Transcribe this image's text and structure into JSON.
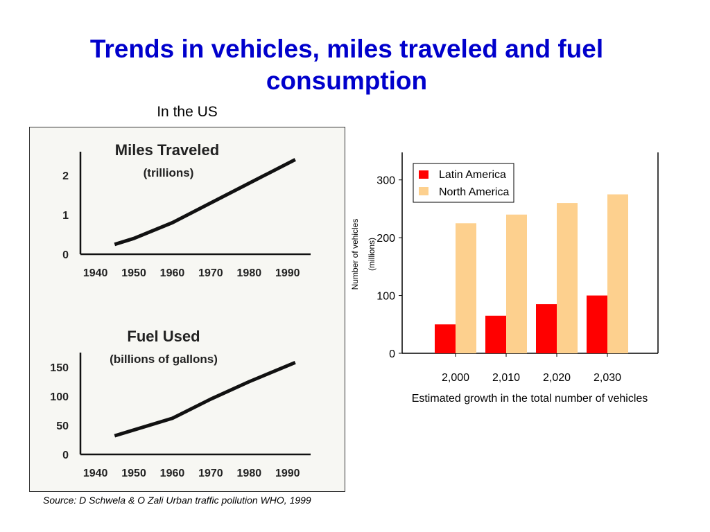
{
  "slide": {
    "title": "Trends in vehicles, miles traveled and fuel consumption",
    "subtitle": "In the US",
    "source": "Source: D Schwela & O Zali Urban traffic pollution WHO, 1999"
  },
  "colors": {
    "title": "#0000cc",
    "latin_america": "#ff0000",
    "north_america": "#fdd08e",
    "panel_bg": "#f7f7f3"
  },
  "chart_data": [
    {
      "type": "line",
      "title": "Miles Traveled",
      "subtitle": "(trillions)",
      "x": [
        1945,
        1950,
        1960,
        1970,
        1980,
        1992
      ],
      "x_ticks": [
        "1940",
        "1950",
        "1960",
        "1970",
        "1980",
        "1990"
      ],
      "x_tick_values": [
        1940,
        1950,
        1960,
        1970,
        1980,
        1990
      ],
      "y": [
        0.25,
        0.4,
        0.8,
        1.3,
        1.8,
        2.4
      ],
      "y_ticks": [
        "0",
        "1",
        "2"
      ],
      "y_tick_values": [
        0,
        1,
        2
      ],
      "xlim": [
        1937,
        1996
      ],
      "ylim": [
        0,
        2.6
      ],
      "grid": false
    },
    {
      "type": "line",
      "title": "Fuel Used",
      "subtitle": "(billions of gallons)",
      "x": [
        1945,
        1950,
        1960,
        1970,
        1980,
        1992
      ],
      "x_ticks": [
        "1940",
        "1950",
        "1960",
        "1970",
        "1980",
        "1990"
      ],
      "x_tick_values": [
        1940,
        1950,
        1960,
        1970,
        1980,
        1990
      ],
      "y": [
        32,
        42,
        62,
        95,
        125,
        158
      ],
      "y_ticks": [
        "0",
        "50",
        "100",
        "150"
      ],
      "y_tick_values": [
        0,
        50,
        100,
        150
      ],
      "xlim": [
        1937,
        1996
      ],
      "ylim": [
        0,
        175
      ],
      "grid": false
    },
    {
      "type": "bar",
      "categories": [
        "2,000",
        "2,010",
        "2,020",
        "2,030"
      ],
      "series": [
        {
          "name": "Latin America",
          "values": [
            50,
            65,
            85,
            100
          ]
        },
        {
          "name": "North America",
          "values": [
            225,
            240,
            260,
            275
          ]
        }
      ],
      "xlabel": "Estimated growth in the total number of vehicles",
      "ylabel": "Number of vehicles",
      "ylabel2": "(millions)",
      "y_ticks": [
        "0",
        "100",
        "200",
        "300"
      ],
      "y_tick_values": [
        0,
        100,
        200,
        300
      ],
      "ylim": [
        0,
        350
      ],
      "legend": "top-left",
      "grid": false
    }
  ]
}
